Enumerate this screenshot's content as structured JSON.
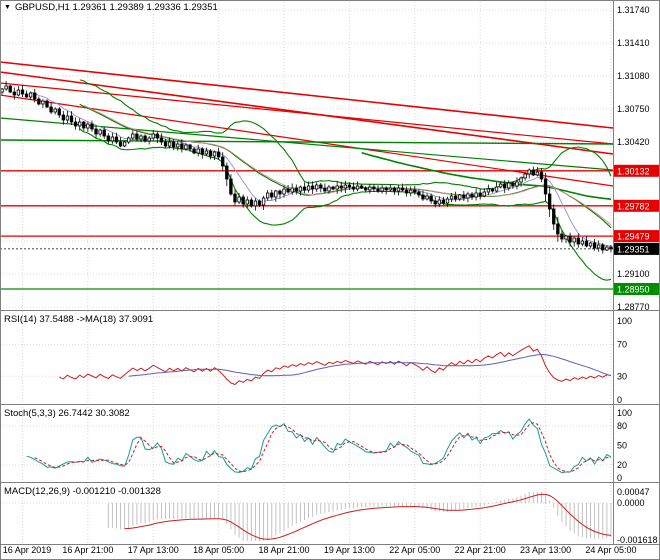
{
  "window": {
    "title_icon": "▼",
    "title": "GBPUSD,H1 1.29361 1.29389 1.29336 1.29351"
  },
  "colors": {
    "grid": "#d8d8d8",
    "separator": "#808080",
    "candle_up_fill": "#ffffff",
    "candle_down_fill": "#000000",
    "candle_stroke": "#000000",
    "level_red": "#e60000",
    "level_green": "#008f00",
    "current_tag": "#000000",
    "bollinger": "#008000",
    "rsi_main": "#cc2020",
    "rsi_ma": "#6060b0",
    "stoch_main": "#179c9c",
    "stoch_signal": "#cc2020",
    "macd_hist": "#bbbbbb",
    "macd_signal": "#cc2020"
  },
  "chart_data": {
    "type": "candlestick",
    "symbol": "GBPUSD",
    "timeframe": "H1",
    "last_ohlc": {
      "open": "1.29361",
      "high": "1.29389",
      "low": "1.29336",
      "close": "1.29351"
    },
    "price_top": 1.3174,
    "price_bottom": 1.2877,
    "y_grid_prices": [
      1.3174,
      1.3141,
      1.3108,
      1.3075,
      1.3042,
      1.3009,
      1.2976,
      1.2943,
      1.291,
      1.2877
    ],
    "y_axis_visible_labels": [
      "1.31740",
      "1.31410",
      "1.31080",
      "1.30750",
      "1.30420",
      "1.29100",
      "1.28770"
    ],
    "x_ticks": {
      "indices": [
        5,
        21,
        37,
        53,
        69,
        85,
        101,
        117,
        133,
        149
      ],
      "labels": [
        "16 Apr 2019",
        "16 Apr 21:00",
        "17 Apr 13:00",
        "18 Apr 05:00",
        "18 Apr 21:00",
        "19 Apr 13:00",
        "22 Apr 05:00",
        "22 Apr 21:00",
        "23 Apr 13:00",
        "24 Apr 05:00"
      ]
    },
    "first_open": 1.3092,
    "wick_base": 0.0004,
    "closes": [
      1.3095,
      1.3098,
      1.3092,
      1.3089,
      1.3094,
      1.309,
      1.3087,
      1.3091,
      1.3085,
      1.308,
      1.3083,
      1.3077,
      1.3072,
      1.3075,
      1.3069,
      1.3064,
      1.3068,
      1.3062,
      1.3058,
      1.3062,
      1.3056,
      1.306,
      1.3055,
      1.305,
      1.3054,
      1.3048,
      1.3043,
      1.3047,
      1.3042,
      1.3038,
      1.3042,
      1.3046,
      1.305,
      1.3045,
      1.3048,
      1.3043,
      1.3046,
      1.305,
      1.3046,
      1.3042,
      1.3038,
      1.3042,
      1.3037,
      1.304,
      1.3035,
      1.3039,
      1.3035,
      1.3031,
      1.3035,
      1.303,
      1.3033,
      1.3028,
      1.3032,
      1.3027,
      1.3018,
      1.3005,
      1.299,
      1.2982,
      1.2987,
      1.298,
      1.2984,
      1.2978,
      1.2983,
      1.2979,
      1.2986,
      1.2991,
      1.2987,
      1.2993,
      1.299,
      1.2995,
      1.2992,
      1.2996,
      1.2993,
      1.2997,
      1.2994,
      1.2998,
      1.2995,
      1.2999,
      1.2996,
      1.2993,
      1.2997,
      1.2995,
      1.2998,
      1.2996,
      1.2999,
      1.2997,
      1.2995,
      1.2998,
      1.2996,
      1.2994,
      1.2997,
      1.2995,
      1.2993,
      1.2996,
      1.2994,
      1.2996,
      1.2993,
      1.2996,
      1.2994,
      1.2991,
      1.2994,
      1.2992,
      1.2989,
      1.2985,
      1.2988,
      1.2983,
      1.298,
      1.2984,
      1.2981,
      1.2985,
      1.2988,
      1.2985,
      1.2989,
      1.2986,
      1.299,
      1.2987,
      1.2991,
      1.2988,
      1.2992,
      1.2995,
      1.2993,
      1.2997,
      1.3,
      1.2996,
      1.3001,
      1.2998,
      1.3002,
      1.3006,
      1.301,
      1.3014,
      1.3009,
      1.3012,
      1.3005,
      1.299,
      1.2975,
      1.296,
      1.295,
      1.2945,
      1.2948,
      1.2942,
      1.2946,
      1.294,
      1.2943,
      1.2938,
      1.2941,
      1.2936,
      1.2939,
      1.2934,
      1.2937,
      1.29351
    ],
    "levels": [
      {
        "price": 1.30132,
        "label": "1.30132",
        "color": "#e60000",
        "line": "solid"
      },
      {
        "price": 1.29782,
        "label": "1.29782",
        "color": "#e60000",
        "line": "solid"
      },
      {
        "price": 1.29479,
        "label": "1.29479",
        "color": "#e60000",
        "line": "solid"
      },
      {
        "price": 1.2895,
        "label": "1.28950",
        "color": "#008f00",
        "line": "solid"
      },
      {
        "price": 1.29351,
        "label": "1.29351",
        "color": "#000000",
        "line": "dotted",
        "current": true
      }
    ],
    "trendlines": [
      {
        "x1": 0,
        "p1": 1.3122,
        "x2": 1,
        "p2": 1.3056,
        "color": "#e60000",
        "width": 1.6
      },
      {
        "x1": 0,
        "p1": 1.3112,
        "x2": 1,
        "p2": 1.303,
        "color": "#e60000",
        "width": 1.6
      },
      {
        "x1": 0,
        "p1": 1.3101,
        "x2": 1,
        "p2": 1.304,
        "color": "#e60000",
        "width": 1.2
      },
      {
        "x1": 0,
        "p1": 1.3089,
        "x2": 1,
        "p2": 1.2998,
        "color": "#e60000",
        "width": 1.2
      },
      {
        "x1": 0,
        "p1": 1.3044,
        "x2": 1,
        "p2": 1.304,
        "color": "#008000",
        "width": 1.4
      },
      {
        "x1": 0,
        "p1": 1.3066,
        "x2": 1,
        "p2": 1.3014,
        "color": "#008000",
        "width": 1.2
      }
    ],
    "overlays": {
      "bollinger": {
        "period": 20,
        "deviation": 2,
        "color": "#008000",
        "width": 1.1
      },
      "smas": [
        {
          "period": 89,
          "color": "#008000",
          "width": 1.6
        },
        {
          "period": 8,
          "color": "#8f8fd0",
          "width": 0.9
        },
        {
          "period": 21,
          "color": "#d08f8f",
          "width": 0.9
        }
      ]
    },
    "indicators": [
      {
        "id": "rsi",
        "header": "RSI(14) 37.5488 ->MA(18) 37.9091",
        "period": 14,
        "ma_period": 18,
        "value_main": "37.5488",
        "value_ma": "37.9091",
        "scale_labels": [
          {
            "v": 100,
            "t": "100"
          },
          {
            "v": 70,
            "t": "70"
          },
          {
            "v": 30,
            "t": "30"
          },
          {
            "v": 0,
            "t": "0"
          }
        ],
        "levels": [
          70,
          30
        ]
      },
      {
        "id": "stoch",
        "header": "Stoch(5,3,3) 26.7442 30.3082",
        "k": 5,
        "d": 3,
        "slowing": 3,
        "value_main": "26.7442",
        "value_signal": "30.3082",
        "scale_labels": [
          {
            "v": 100,
            "t": "100"
          },
          {
            "v": 80,
            "t": "80"
          },
          {
            "v": 50,
            "t": "50"
          },
          {
            "v": 20,
            "t": "20"
          },
          {
            "v": 0,
            "t": "0"
          }
        ],
        "levels": [
          80,
          20
        ]
      },
      {
        "id": "macd",
        "header": "MACD(12,26,9) -0.001210 -0.001328",
        "fast": 12,
        "slow": 26,
        "signal": 9,
        "value_main": "-0.001210",
        "value_signal": "-0.001328",
        "scale_labels": [
          {
            "v": 0.00047,
            "t": "0.00047"
          },
          {
            "v": 0,
            "t": "0.0000"
          },
          {
            "v": -0.001618,
            "t": "-0.001618"
          }
        ],
        "range_max": 0.00047,
        "range_min": -0.001618
      }
    ]
  }
}
